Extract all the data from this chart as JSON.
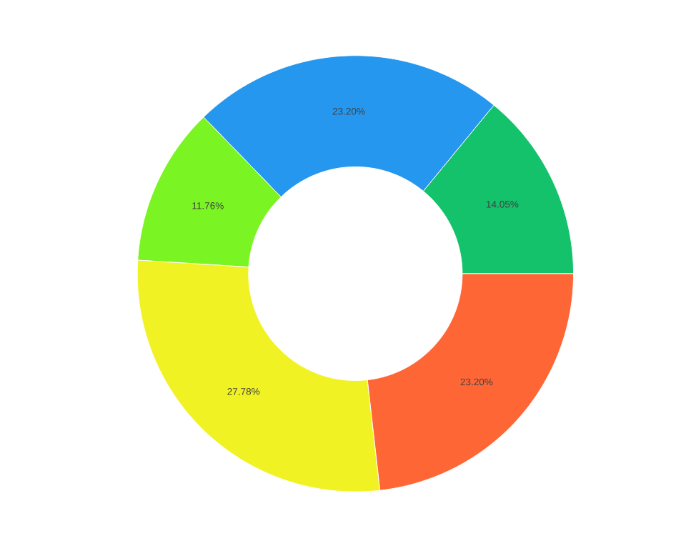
{
  "chart_data": {
    "type": "donut",
    "categories": [
      null,
      null,
      null,
      null,
      null
    ],
    "values": [
      14.05,
      23.2,
      11.76,
      27.78,
      23.2
    ],
    "colors": [
      "#13c26a",
      "#2597ee",
      "#7af523",
      "#f1f223",
      "#fe6635"
    ],
    "value_labels": [
      "14.05%",
      "23.20%",
      "11.76%",
      "27.78%",
      "23.20%"
    ]
  }
}
